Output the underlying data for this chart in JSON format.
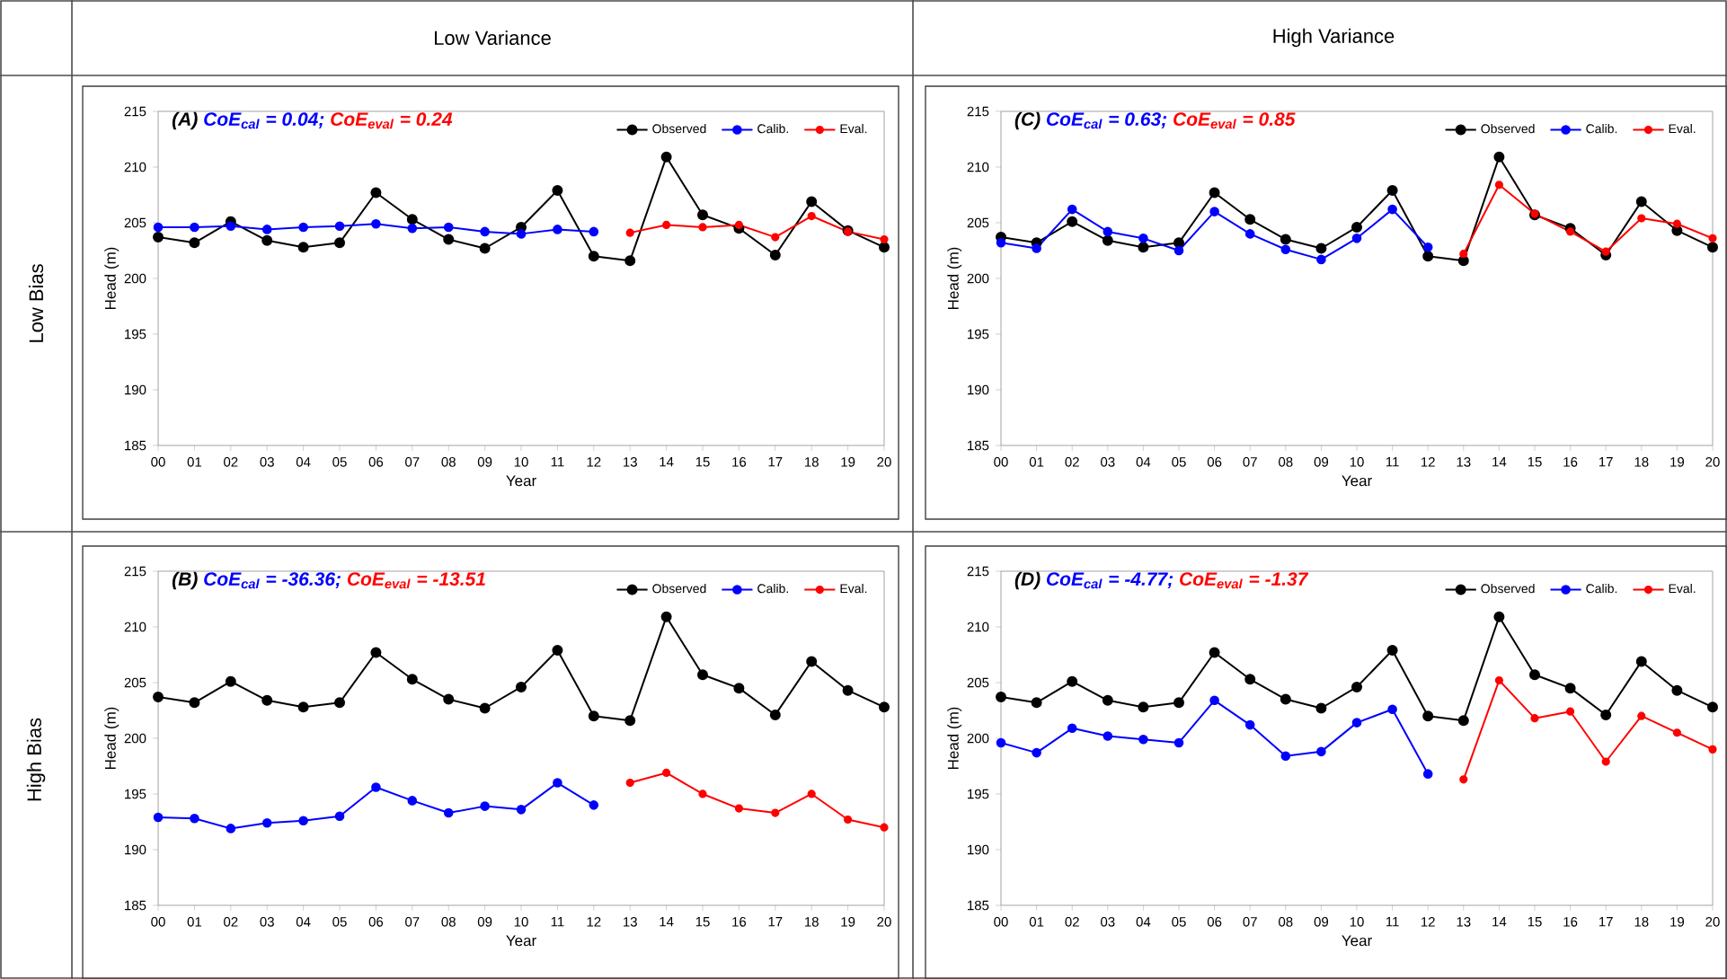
{
  "chart_data": [
    {
      "type": "line",
      "title": "(A)",
      "subtitle": "CoE$_{cal}$ = 0.04;",
      "annotations": [
        "CoE$_{eval}$ = 0.24",
        "Low Variance",
        "Low Bias"
      ],
      "xlabel": "Year",
      "ylabel": "Head (m)",
      "categories": [
        "00",
        "01",
        "02",
        "03",
        "04",
        "05",
        "06",
        "07",
        "08",
        "09",
        "10",
        "11",
        "12",
        "13",
        "14",
        "15",
        "16",
        "17",
        "18",
        "19",
        "20"
      ],
      "series": [
        {
          "name": "Observed",
          "color": "#000000",
          "values": [
            203.7,
            203.2,
            205.1,
            203.4,
            202.8,
            203.2,
            207.7,
            205.3,
            203.5,
            202.7,
            204.6,
            207.9,
            202.0,
            201.6,
            210.9,
            205.7,
            204.5,
            202.1,
            206.9,
            204.3,
            202.8
          ]
        },
        {
          "name": "Calib.",
          "color": "#0000ff",
          "values": [
            204.6,
            204.6,
            204.7,
            204.4,
            204.6,
            204.7,
            204.9,
            204.5,
            204.6,
            204.2,
            204.0,
            204.4,
            204.2,
            null,
            null,
            null,
            null,
            null,
            null,
            null,
            null
          ]
        },
        {
          "name": "Eval.",
          "color": "#ff0000",
          "values": [
            null,
            null,
            null,
            null,
            null,
            null,
            null,
            null,
            null,
            null,
            null,
            null,
            null,
            204.1,
            204.8,
            204.6,
            204.8,
            203.7,
            205.6,
            204.2,
            203.5
          ]
        }
      ],
      "ylim": [
        185,
        215
      ],
      "yticks": [
        185,
        190,
        195,
        200,
        205,
        210,
        215
      ],
      "legend": "top right",
      "marker": "circle",
      "line_style": "solid"
    },
    {
      "type": "line",
      "title": "(C)",
      "subtitle": "CoE$_{cal}$ = 0.63;",
      "annotations": [
        "CoE$_{eval}$ = 0.85",
        "High Variance"
      ],
      "xlabel": "Year",
      "ylabel": "Head (m)",
      "categories": [
        "00",
        "01",
        "02",
        "03",
        "04",
        "05",
        "06",
        "07",
        "08",
        "09",
        "10",
        "11",
        "12",
        "13",
        "14",
        "15",
        "16",
        "17",
        "18",
        "19",
        "20"
      ],
      "series": [
        {
          "name": "Observed",
          "color": "#000000",
          "values": [
            203.7,
            203.2,
            205.1,
            203.4,
            202.8,
            203.2,
            207.7,
            205.3,
            203.5,
            202.7,
            204.6,
            207.9,
            202.0,
            201.6,
            210.9,
            205.7,
            204.5,
            202.1,
            206.9,
            204.3,
            202.8
          ]
        },
        {
          "name": "Calib.",
          "color": "#0000ff",
          "values": [
            203.2,
            202.7,
            206.2,
            204.2,
            203.6,
            202.5,
            206.0,
            204.0,
            202.6,
            201.7,
            203.6,
            206.2,
            202.8,
            null,
            null,
            null,
            null,
            null,
            null,
            null,
            null
          ]
        },
        {
          "name": "Eval.",
          "color": "#ff0000",
          "values": [
            null,
            null,
            null,
            null,
            null,
            null,
            null,
            null,
            null,
            null,
            null,
            null,
            null,
            202.2,
            208.4,
            205.8,
            204.2,
            202.4,
            205.4,
            204.9,
            203.6
          ]
        }
      ],
      "ylim": [
        185,
        215
      ],
      "yticks": [
        185,
        190,
        195,
        200,
        205,
        210,
        215
      ],
      "legend": "top right",
      "marker": "circle",
      "line_style": "solid"
    },
    {
      "type": "line",
      "title": "(B)",
      "subtitle": "CoE$_{cal}$ = -36.36;",
      "annotations": [
        "CoE$_{eval}$ = -13.51",
        "High Bias"
      ],
      "xlabel": "Year",
      "ylabel": "Head (m)",
      "categories": [
        "00",
        "01",
        "02",
        "03",
        "04",
        "05",
        "06",
        "07",
        "08",
        "09",
        "10",
        "11",
        "12",
        "13",
        "14",
        "15",
        "16",
        "17",
        "18",
        "19",
        "20"
      ],
      "series": [
        {
          "name": "Observed",
          "color": "#000000",
          "values": [
            203.7,
            203.2,
            205.1,
            203.4,
            202.8,
            203.2,
            207.7,
            205.3,
            203.5,
            202.7,
            204.6,
            207.9,
            202.0,
            201.6,
            210.9,
            205.7,
            204.5,
            202.1,
            206.9,
            204.3,
            202.8
          ]
        },
        {
          "name": "Calib.",
          "color": "#0000ff",
          "values": [
            192.9,
            192.8,
            191.9,
            192.4,
            192.6,
            193.0,
            195.6,
            194.4,
            193.3,
            193.9,
            193.6,
            196.0,
            194.0,
            null,
            null,
            null,
            null,
            null,
            null,
            null,
            null
          ]
        },
        {
          "name": "Eval.",
          "color": "#ff0000",
          "values": [
            null,
            null,
            null,
            null,
            null,
            null,
            null,
            null,
            null,
            null,
            null,
            null,
            null,
            196.0,
            196.9,
            195.0,
            193.7,
            193.3,
            195.0,
            192.7,
            192.0
          ]
        }
      ],
      "ylim": [
        185,
        215
      ],
      "yticks": [
        185,
        190,
        195,
        200,
        205,
        210,
        215
      ],
      "legend": "top right",
      "marker": "circle",
      "line_style": "solid"
    },
    {
      "type": "line",
      "title": "(D)",
      "subtitle": "CoE$_{cal}$ = -4.77;",
      "annotations": [
        "CoE$_{eval}$ = -1.37"
      ],
      "xlabel": "Year",
      "ylabel": "Head (m)",
      "categories": [
        "00",
        "01",
        "02",
        "03",
        "04",
        "05",
        "06",
        "07",
        "08",
        "09",
        "10",
        "11",
        "12",
        "13",
        "14",
        "15",
        "16",
        "17",
        "18",
        "19",
        "20"
      ],
      "series": [
        {
          "name": "Observed",
          "color": "#000000",
          "values": [
            203.7,
            203.2,
            205.1,
            203.4,
            202.8,
            203.2,
            207.7,
            205.3,
            203.5,
            202.7,
            204.6,
            207.9,
            202.0,
            201.6,
            210.9,
            205.7,
            204.5,
            202.1,
            206.9,
            204.3,
            202.8
          ]
        },
        {
          "name": "Calib.",
          "color": "#0000ff",
          "values": [
            199.6,
            198.7,
            200.9,
            200.2,
            199.9,
            199.6,
            203.4,
            201.2,
            198.4,
            198.8,
            201.4,
            202.6,
            196.8,
            null,
            null,
            null,
            null,
            null,
            null,
            null,
            null
          ]
        },
        {
          "name": "Eval.",
          "color": "#ff0000",
          "values": [
            null,
            null,
            null,
            null,
            null,
            null,
            null,
            null,
            null,
            null,
            null,
            null,
            null,
            196.3,
            205.2,
            201.8,
            202.4,
            197.9,
            202.0,
            200.5,
            199.0
          ]
        }
      ],
      "ylim": [
        185,
        215
      ],
      "yticks": [
        185,
        190,
        195,
        200,
        205,
        210,
        215
      ],
      "legend": "top right",
      "marker": "circle",
      "line_style": "solid"
    }
  ]
}
